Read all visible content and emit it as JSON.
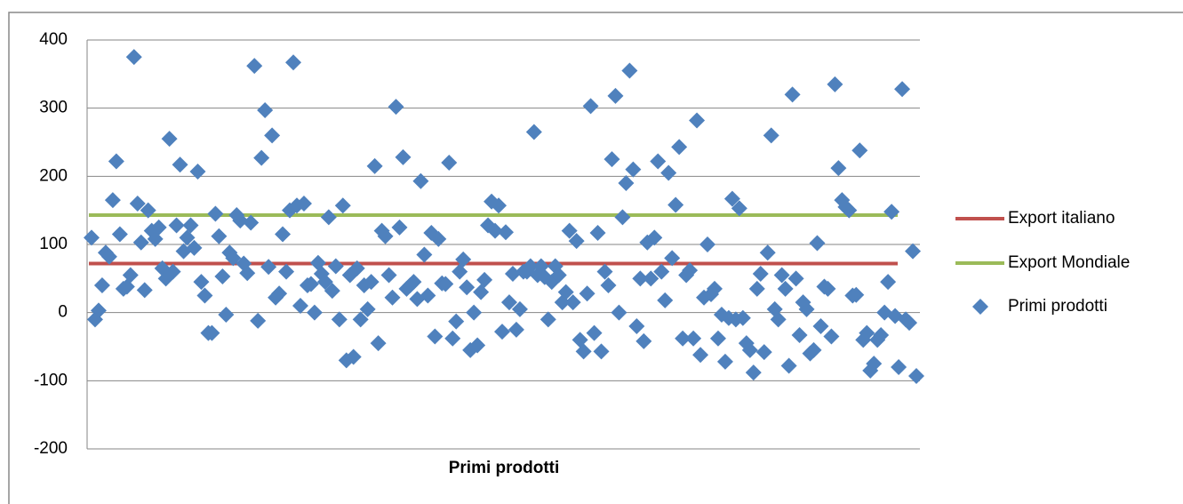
{
  "chart_data": {
    "type": "scatter",
    "x_label": "Primi prodotti",
    "ylim": [
      -200,
      400
    ],
    "yticks": [
      -200,
      -100,
      0,
      100,
      200,
      300,
      400
    ],
    "grid": true,
    "legend": "right",
    "series": [
      {
        "name": "Export italiano",
        "type": "line",
        "color": "#c0504d",
        "values": [
          72
        ]
      },
      {
        "name": "Export Mondiale",
        "type": "line",
        "color": "#9bbb59",
        "values": [
          143
        ]
      },
      {
        "name": "Primi prodotti",
        "type": "scatter",
        "marker": "diamond",
        "color": "#4f81bd",
        "values": [
          110,
          -10,
          3,
          40,
          88,
          82,
          165,
          222,
          115,
          35,
          38,
          55,
          375,
          160,
          103,
          33,
          150,
          120,
          108,
          125,
          65,
          50,
          255,
          60,
          128,
          217,
          90,
          110,
          128,
          95,
          207,
          45,
          25,
          -30,
          -30,
          145,
          112,
          53,
          -3,
          88,
          80,
          143,
          135,
          72,
          58,
          132,
          362,
          -12,
          227,
          297,
          67,
          260,
          22,
          28,
          115,
          60,
          150,
          367,
          157,
          10,
          160,
          40,
          42,
          0,
          73,
          57,
          45,
          140,
          32,
          68,
          -10,
          157,
          -70,
          55,
          -65,
          65,
          -10,
          40,
          5,
          45,
          215,
          -45,
          120,
          112,
          55,
          22,
          302,
          125,
          228,
          35,
          40,
          45,
          20,
          193,
          85,
          25,
          117,
          -35,
          108,
          43,
          42,
          220,
          -38,
          -13,
          60,
          78,
          37,
          -55,
          0,
          -48,
          30,
          48,
          128,
          163,
          120,
          157,
          -28,
          118,
          15,
          57,
          -25,
          5,
          60,
          60,
          68,
          265,
          55,
          68,
          52,
          -10,
          45,
          68,
          55,
          15,
          30,
          120,
          15,
          105,
          -40,
          -57,
          28,
          303,
          -30,
          117,
          -57,
          60,
          40,
          225,
          318,
          0,
          140,
          190,
          355,
          210,
          -20,
          50,
          -42,
          103,
          50,
          110,
          222,
          60,
          18,
          205,
          80,
          158,
          243,
          -38,
          55,
          62,
          -38,
          282,
          -62,
          22,
          100,
          27,
          35,
          -38,
          -3,
          -72,
          -8,
          167,
          -10,
          153,
          -8,
          -45,
          -55,
          -88,
          35,
          57,
          -58,
          88,
          260,
          5,
          -10,
          55,
          35,
          -78,
          320,
          50,
          -33,
          15,
          5,
          -60,
          -55,
          102,
          -20,
          38,
          35,
          -35,
          335,
          212,
          165,
          155,
          150,
          25,
          26,
          238,
          -40,
          -30,
          -85,
          -75,
          -40,
          -33,
          0,
          45,
          148,
          -5,
          -80,
          328,
          -10,
          -15,
          90,
          -93
        ]
      }
    ]
  }
}
